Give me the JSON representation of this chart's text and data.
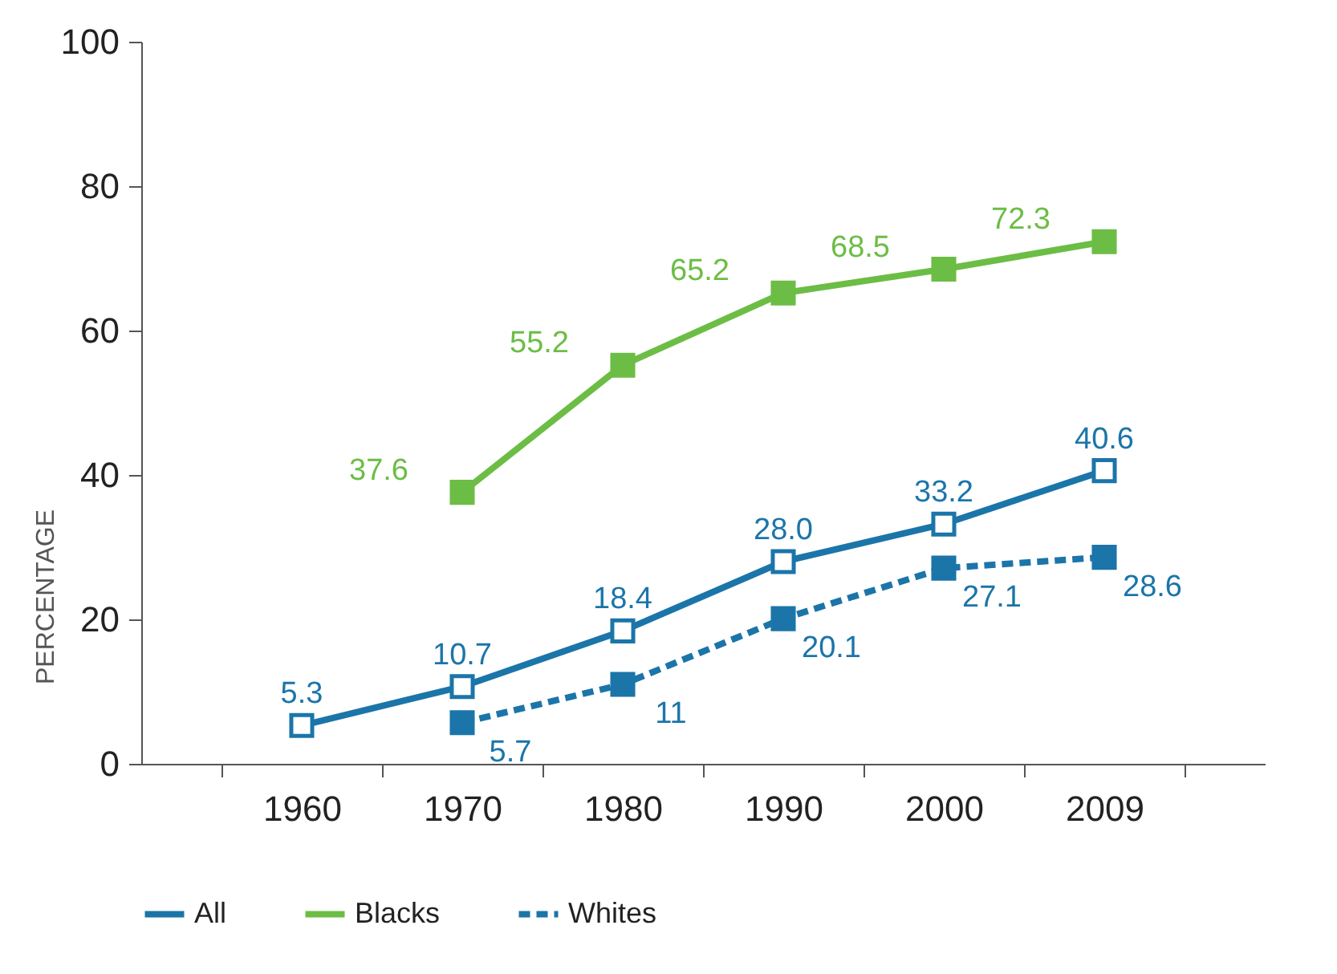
{
  "chart_data": {
    "type": "line",
    "ylabel": "PERCENTAGE",
    "categories": [
      "1960",
      "1970",
      "1980",
      "1990",
      "2000",
      "2009"
    ],
    "ylim": [
      0,
      100
    ],
    "yticks": [
      0,
      20,
      40,
      60,
      80,
      100
    ],
    "grid": false,
    "legend": "bottom",
    "marker": "square",
    "series": [
      {
        "name": "All",
        "color": "#1b75a9",
        "line_style": "solid",
        "values": [
          5.3,
          10.7,
          18.4,
          28.0,
          33.2,
          40.6
        ],
        "value_labels": [
          "5.3",
          "10.7",
          "18.4",
          "28.0",
          "33.2",
          "40.6"
        ]
      },
      {
        "name": "Blacks",
        "color": "#6cbd45",
        "line_style": "solid",
        "values": [
          null,
          37.6,
          55.2,
          65.2,
          68.5,
          72.3
        ],
        "value_labels": [
          null,
          "37.6",
          "55.2",
          "65.2",
          "68.5",
          "72.3"
        ]
      },
      {
        "name": "Whites",
        "color": "#1b75a9",
        "line_style": "dashed",
        "values": [
          null,
          5.7,
          11,
          20.1,
          27.1,
          28.6
        ],
        "value_labels": [
          null,
          "5.7",
          "11",
          "20.1",
          "27.1",
          "28.6"
        ]
      }
    ]
  }
}
